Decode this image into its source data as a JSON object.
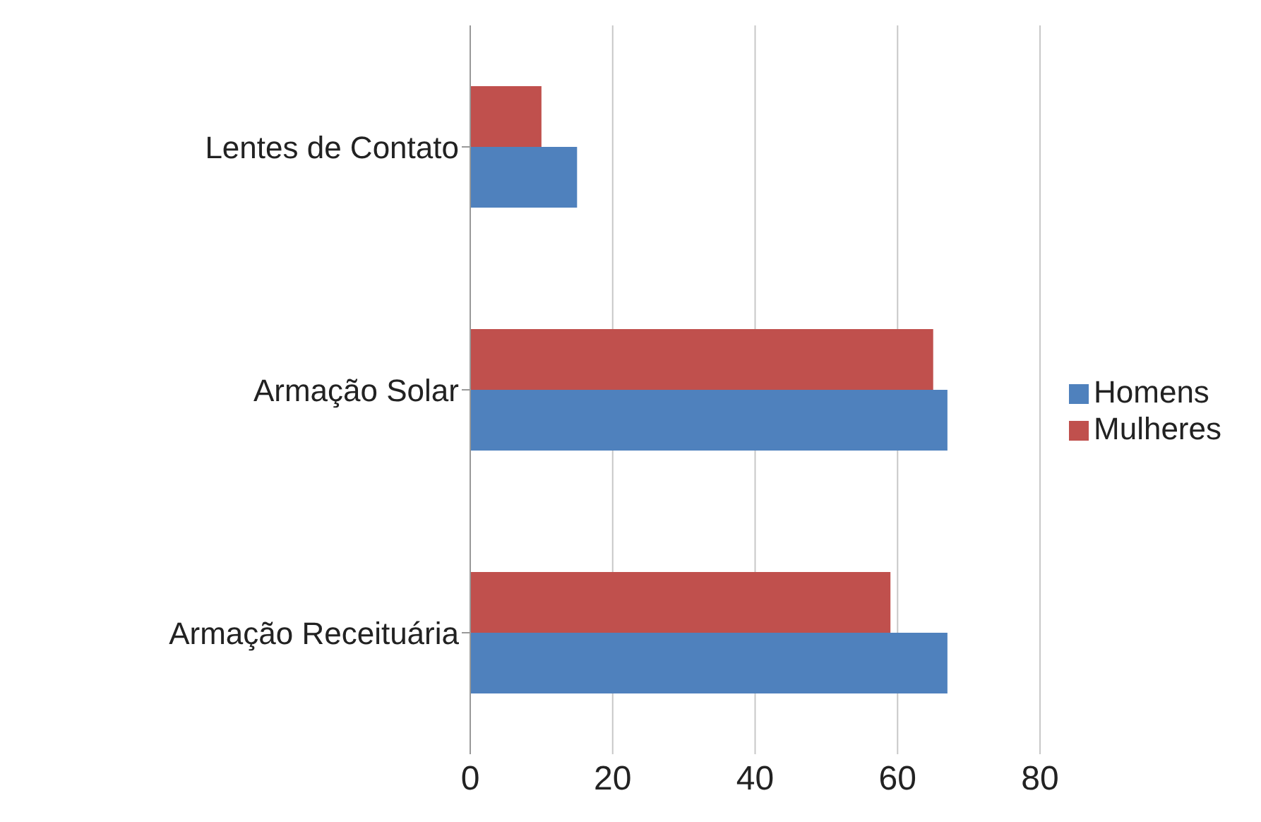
{
  "chart_data": {
    "type": "bar",
    "orientation": "horizontal",
    "categories": [
      "Lentes de Contato",
      "Armação Solar",
      "Armação Receituária"
    ],
    "series": [
      {
        "name": "Mulheres",
        "color": "#c0504d",
        "values": [
          10,
          65,
          59
        ]
      },
      {
        "name": "Homens",
        "color": "#4f81bd",
        "values": [
          15,
          67,
          67
        ]
      }
    ],
    "xlim": [
      0,
      80
    ],
    "xticks": [
      0,
      20,
      40,
      60,
      80
    ],
    "grid": "x",
    "legend": "right"
  }
}
